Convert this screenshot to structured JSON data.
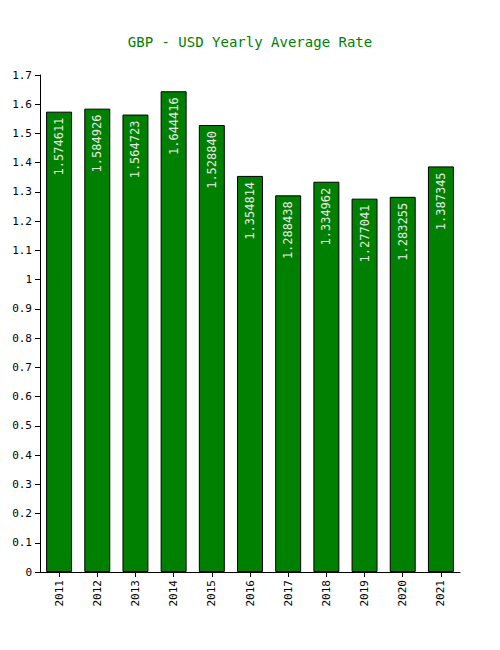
{
  "chart_data": {
    "type": "bar",
    "title": "GBP - USD Yearly Average Rate",
    "categories": [
      "2011",
      "2012",
      "2013",
      "2014",
      "2015",
      "2016",
      "2017",
      "2018",
      "2019",
      "2020",
      "2021"
    ],
    "values": [
      1.574611,
      1.584926,
      1.564723,
      1.644416,
      1.52884,
      1.354814,
      1.288438,
      1.334962,
      1.277041,
      1.283255,
      1.387345
    ],
    "value_labels": [
      "1.574611",
      "1.584926",
      "1.564723",
      "1.644416",
      "1.528840",
      "1.354814",
      "1.288438",
      "1.334962",
      "1.277041",
      "1.283255",
      "1.387345"
    ],
    "color": "#008000",
    "ylim": [
      0,
      1.7
    ],
    "yticks": [
      0,
      0.1,
      0.2,
      0.3,
      0.4,
      0.5,
      0.6,
      0.7,
      0.8,
      0.9,
      1,
      1.1,
      1.2,
      1.3,
      1.4,
      1.5,
      1.6,
      1.7
    ],
    "grid": false,
    "data_labels": true
  }
}
